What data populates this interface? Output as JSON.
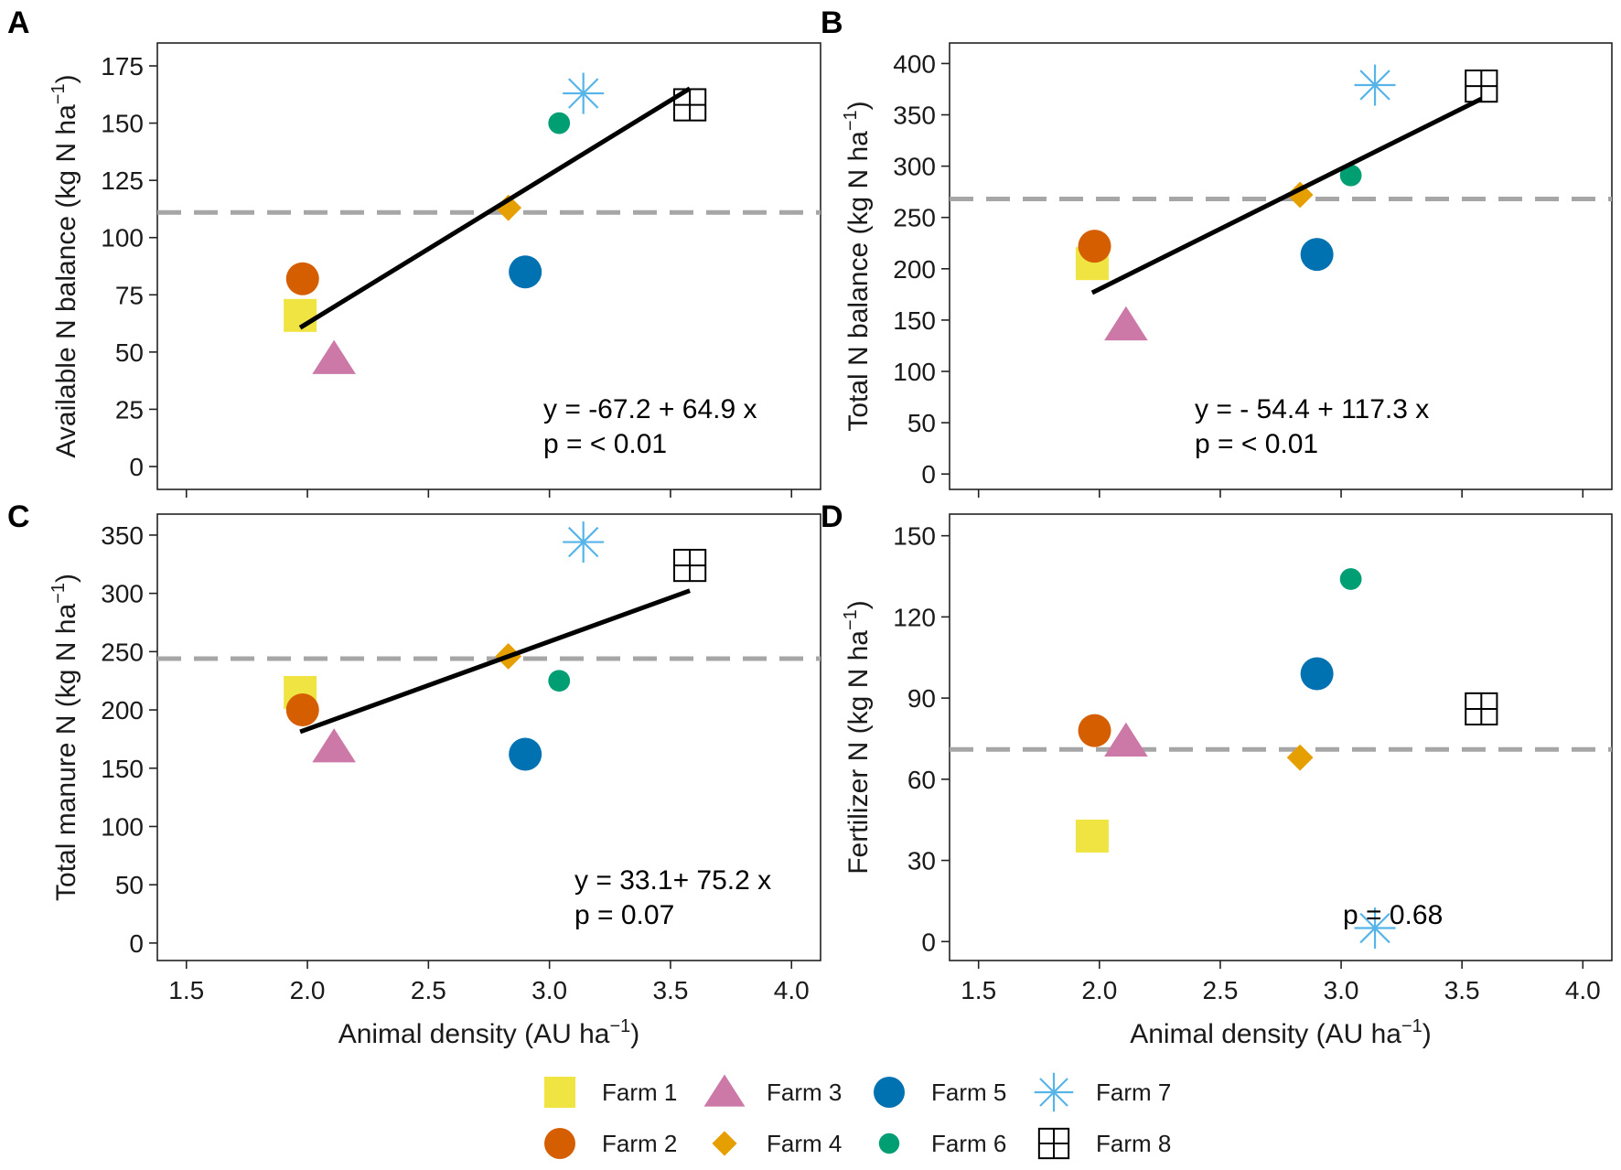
{
  "farms": [
    {
      "id": "farm1",
      "label": "Farm 1",
      "shape": "square",
      "color": "#F0E442"
    },
    {
      "id": "farm2",
      "label": "Farm 2",
      "shape": "circle",
      "color": "#D55E00"
    },
    {
      "id": "farm3",
      "label": "Farm 3",
      "shape": "triangle",
      "color": "#CC79A7"
    },
    {
      "id": "farm4",
      "label": "Farm 4",
      "shape": "diamond",
      "color": "#E69F00"
    },
    {
      "id": "farm5",
      "label": "Farm 5",
      "shape": "circle",
      "color": "#0072B2"
    },
    {
      "id": "farm6",
      "label": "Farm 6",
      "shape": "small-circle",
      "color": "#009E73"
    },
    {
      "id": "farm7",
      "label": "Farm 7",
      "shape": "asterisk",
      "color": "#56B4E9"
    },
    {
      "id": "farm8",
      "label": "Farm 8",
      "shape": "boxplus",
      "color": "#000000"
    }
  ],
  "chart_data": [
    {
      "panel": "A",
      "type": "scatter",
      "xlabel": "Animal density (AU ha",
      "xlabel_sup": "−1",
      "xlabel_end": ")",
      "ylabel": "Available N balance (kg N ha",
      "ylabel_sup": "−1",
      "ylabel_end": ")",
      "xlim": [
        1.38,
        4.12
      ],
      "ylim": [
        -10,
        185
      ],
      "xticks": [
        1.5,
        2.0,
        2.5,
        3.0,
        3.5,
        4.0
      ],
      "xtick_labels": [],
      "yticks": [
        0,
        25,
        50,
        75,
        100,
        125,
        150,
        175
      ],
      "ytick_labels": [
        "0",
        "25",
        "50",
        "75",
        "100",
        "125",
        "150",
        "175"
      ],
      "points": [
        {
          "farm": "farm1",
          "x": 1.97,
          "y": 66
        },
        {
          "farm": "farm2",
          "x": 1.98,
          "y": 82
        },
        {
          "farm": "farm3",
          "x": 2.11,
          "y": 47
        },
        {
          "farm": "farm4",
          "x": 2.83,
          "y": 113
        },
        {
          "farm": "farm5",
          "x": 2.9,
          "y": 85
        },
        {
          "farm": "farm6",
          "x": 3.04,
          "y": 150
        },
        {
          "farm": "farm7",
          "x": 3.14,
          "y": 163
        },
        {
          "farm": "farm8",
          "x": 3.58,
          "y": 158
        }
      ],
      "mean_line": 111,
      "fit": {
        "intercept": -67.2,
        "slope": 64.9,
        "x_range": [
          1.97,
          3.58
        ]
      },
      "annotation_lines": [
        "y = -67.2 + 64.9 x",
        "p = < 0.01"
      ]
    },
    {
      "panel": "B",
      "type": "scatter",
      "xlabel": "Animal density (AU ha",
      "xlabel_sup": "−1",
      "xlabel_end": ")",
      "ylabel": "Total N balance (kg N ha",
      "ylabel_sup": "−1",
      "ylabel_end": ")",
      "xlim": [
        1.38,
        4.12
      ],
      "ylim": [
        -15,
        420
      ],
      "xticks": [
        1.5,
        2.0,
        2.5,
        3.0,
        3.5,
        4.0
      ],
      "xtick_labels": [],
      "yticks": [
        0,
        50,
        100,
        150,
        200,
        250,
        300,
        350,
        400
      ],
      "ytick_labels": [
        "0",
        "50",
        "100",
        "150",
        "200",
        "250",
        "300",
        "350",
        "400"
      ],
      "points": [
        {
          "farm": "farm1",
          "x": 1.97,
          "y": 205
        },
        {
          "farm": "farm2",
          "x": 1.98,
          "y": 222
        },
        {
          "farm": "farm3",
          "x": 2.11,
          "y": 145
        },
        {
          "farm": "farm4",
          "x": 2.83,
          "y": 272
        },
        {
          "farm": "farm5",
          "x": 2.9,
          "y": 214
        },
        {
          "farm": "farm6",
          "x": 3.04,
          "y": 291
        },
        {
          "farm": "farm7",
          "x": 3.14,
          "y": 379
        },
        {
          "farm": "farm8",
          "x": 3.58,
          "y": 378
        }
      ],
      "mean_line": 268,
      "fit": {
        "intercept": -54.4,
        "slope": 117.3,
        "x_range": [
          1.97,
          3.58
        ]
      },
      "annotation_lines": [
        "y = - 54.4 + 117.3 x",
        "p = < 0.01"
      ]
    },
    {
      "panel": "C",
      "type": "scatter",
      "xlabel": "Animal density (AU ha",
      "xlabel_sup": "−1",
      "xlabel_end": ")",
      "ylabel": "Total manure N (kg N ha",
      "ylabel_sup": "−1",
      "ylabel_end": ")",
      "xlim": [
        1.38,
        4.12
      ],
      "ylim": [
        -15,
        368
      ],
      "xticks": [
        1.5,
        2.0,
        2.5,
        3.0,
        3.5,
        4.0
      ],
      "xtick_labels": [
        "1.5",
        "2.0",
        "2.5",
        "3.0",
        "3.5",
        "4.0"
      ],
      "yticks": [
        0,
        50,
        100,
        150,
        200,
        250,
        300,
        350
      ],
      "ytick_labels": [
        "0",
        "50",
        "100",
        "150",
        "200",
        "250",
        "300",
        "350"
      ],
      "points": [
        {
          "farm": "farm1",
          "x": 1.97,
          "y": 215
        },
        {
          "farm": "farm2",
          "x": 1.98,
          "y": 200
        },
        {
          "farm": "farm3",
          "x": 2.11,
          "y": 168
        },
        {
          "farm": "farm4",
          "x": 2.83,
          "y": 246
        },
        {
          "farm": "farm5",
          "x": 2.9,
          "y": 162
        },
        {
          "farm": "farm6",
          "x": 3.04,
          "y": 225
        },
        {
          "farm": "farm7",
          "x": 3.14,
          "y": 344
        },
        {
          "farm": "farm8",
          "x": 3.58,
          "y": 324
        }
      ],
      "mean_line": 244,
      "fit": {
        "intercept": 33.1,
        "slope": 75.2,
        "x_range": [
          1.97,
          3.58
        ]
      },
      "annotation_lines": [
        "y = 33.1+ 75.2 x",
        "p = 0.07"
      ]
    },
    {
      "panel": "D",
      "type": "scatter",
      "xlabel": "Animal density (AU ha",
      "xlabel_sup": "−1",
      "xlabel_end": ")",
      "ylabel": "Fertilizer N (kg N ha",
      "ylabel_sup": "−1",
      "ylabel_end": ")",
      "xlim": [
        1.38,
        4.12
      ],
      "ylim": [
        -7,
        158
      ],
      "xticks": [
        1.5,
        2.0,
        2.5,
        3.0,
        3.5,
        4.0
      ],
      "xtick_labels": [
        "1.5",
        "2.0",
        "2.5",
        "3.0",
        "3.5",
        "4.0"
      ],
      "yticks": [
        0,
        30,
        60,
        90,
        120,
        150
      ],
      "ytick_labels": [
        "0",
        "30",
        "60",
        "90",
        "120",
        "150"
      ],
      "points": [
        {
          "farm": "farm1",
          "x": 1.97,
          "y": 39
        },
        {
          "farm": "farm2",
          "x": 1.98,
          "y": 78
        },
        {
          "farm": "farm3",
          "x": 2.11,
          "y": 74
        },
        {
          "farm": "farm4",
          "x": 2.83,
          "y": 68
        },
        {
          "farm": "farm5",
          "x": 2.9,
          "y": 99
        },
        {
          "farm": "farm6",
          "x": 3.04,
          "y": 134
        },
        {
          "farm": "farm7",
          "x": 3.14,
          "y": 5
        },
        {
          "farm": "farm8",
          "x": 3.58,
          "y": 86
        }
      ],
      "mean_line": 71,
      "fit": null,
      "annotation_lines": [
        "p = 0.68"
      ]
    }
  ]
}
